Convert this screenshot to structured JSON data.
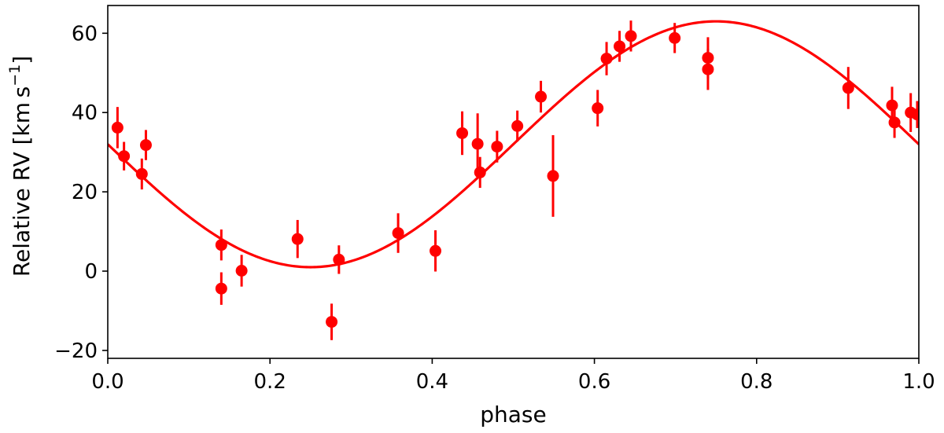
{
  "chart_data": {
    "type": "scatter",
    "title": "",
    "xlabel": "phase",
    "ylabel": "Relative RV [km s⁻¹]",
    "ylabel_parts": {
      "main": "Relative RV [km s",
      "sup": "−1",
      "close": "]"
    },
    "xlim": [
      0.0,
      1.0
    ],
    "ylim": [
      -22,
      67
    ],
    "xticks": [
      0.0,
      0.2,
      0.4,
      0.6,
      0.8,
      1.0
    ],
    "xtick_labels": [
      "0.0",
      "0.2",
      "0.4",
      "0.6",
      "0.8",
      "1.0"
    ],
    "yticks": [
      -20,
      0,
      20,
      40,
      60
    ],
    "ytick_labels": [
      "−20",
      "0",
      "20",
      "40",
      "60"
    ],
    "grid": false,
    "color": "#ff0000",
    "model_curve": {
      "type": "sinusoid",
      "mean": 32,
      "amplitude": 31,
      "phase_of_minimum": 0.25
    },
    "points": [
      {
        "x": 0.012,
        "y": 36.2,
        "err": 5.2
      },
      {
        "x": 0.02,
        "y": 29.0,
        "err": 3.6
      },
      {
        "x": 0.042,
        "y": 24.5,
        "err": 3.9
      },
      {
        "x": 0.047,
        "y": 31.8,
        "err": 3.8
      },
      {
        "x": 0.14,
        "y": 6.6,
        "err": 3.9
      },
      {
        "x": 0.14,
        "y": -4.4,
        "err": 4.1
      },
      {
        "x": 0.165,
        "y": 0.1,
        "err": 4.0
      },
      {
        "x": 0.234,
        "y": 8.1,
        "err": 4.8
      },
      {
        "x": 0.276,
        "y": -12.8,
        "err": 4.6
      },
      {
        "x": 0.285,
        "y": 2.9,
        "err": 3.6
      },
      {
        "x": 0.358,
        "y": 9.6,
        "err": 5.0
      },
      {
        "x": 0.404,
        "y": 5.1,
        "err": 5.2
      },
      {
        "x": 0.437,
        "y": 34.8,
        "err": 5.5
      },
      {
        "x": 0.456,
        "y": 32.1,
        "err": 7.7
      },
      {
        "x": 0.459,
        "y": 24.9,
        "err": 3.9
      },
      {
        "x": 0.48,
        "y": 31.4,
        "err": 4.0
      },
      {
        "x": 0.505,
        "y": 36.6,
        "err": 3.9
      },
      {
        "x": 0.534,
        "y": 44.0,
        "err": 4.0
      },
      {
        "x": 0.549,
        "y": 24.0,
        "err": 10.3
      },
      {
        "x": 0.604,
        "y": 41.1,
        "err": 4.6
      },
      {
        "x": 0.615,
        "y": 53.6,
        "err": 4.2
      },
      {
        "x": 0.631,
        "y": 56.7,
        "err": 3.9
      },
      {
        "x": 0.645,
        "y": 59.3,
        "err": 3.9
      },
      {
        "x": 0.699,
        "y": 58.8,
        "err": 3.8
      },
      {
        "x": 0.74,
        "y": 53.8,
        "err": 5.2
      },
      {
        "x": 0.74,
        "y": 50.9,
        "err": 5.2
      },
      {
        "x": 0.913,
        "y": 46.2,
        "err": 5.3
      },
      {
        "x": 0.967,
        "y": 41.8,
        "err": 4.7
      },
      {
        "x": 0.97,
        "y": 37.5,
        "err": 3.9
      },
      {
        "x": 0.99,
        "y": 40.0,
        "err": 4.9
      },
      {
        "x": 0.998,
        "y": 39.5,
        "err": 3.4
      }
    ]
  }
}
